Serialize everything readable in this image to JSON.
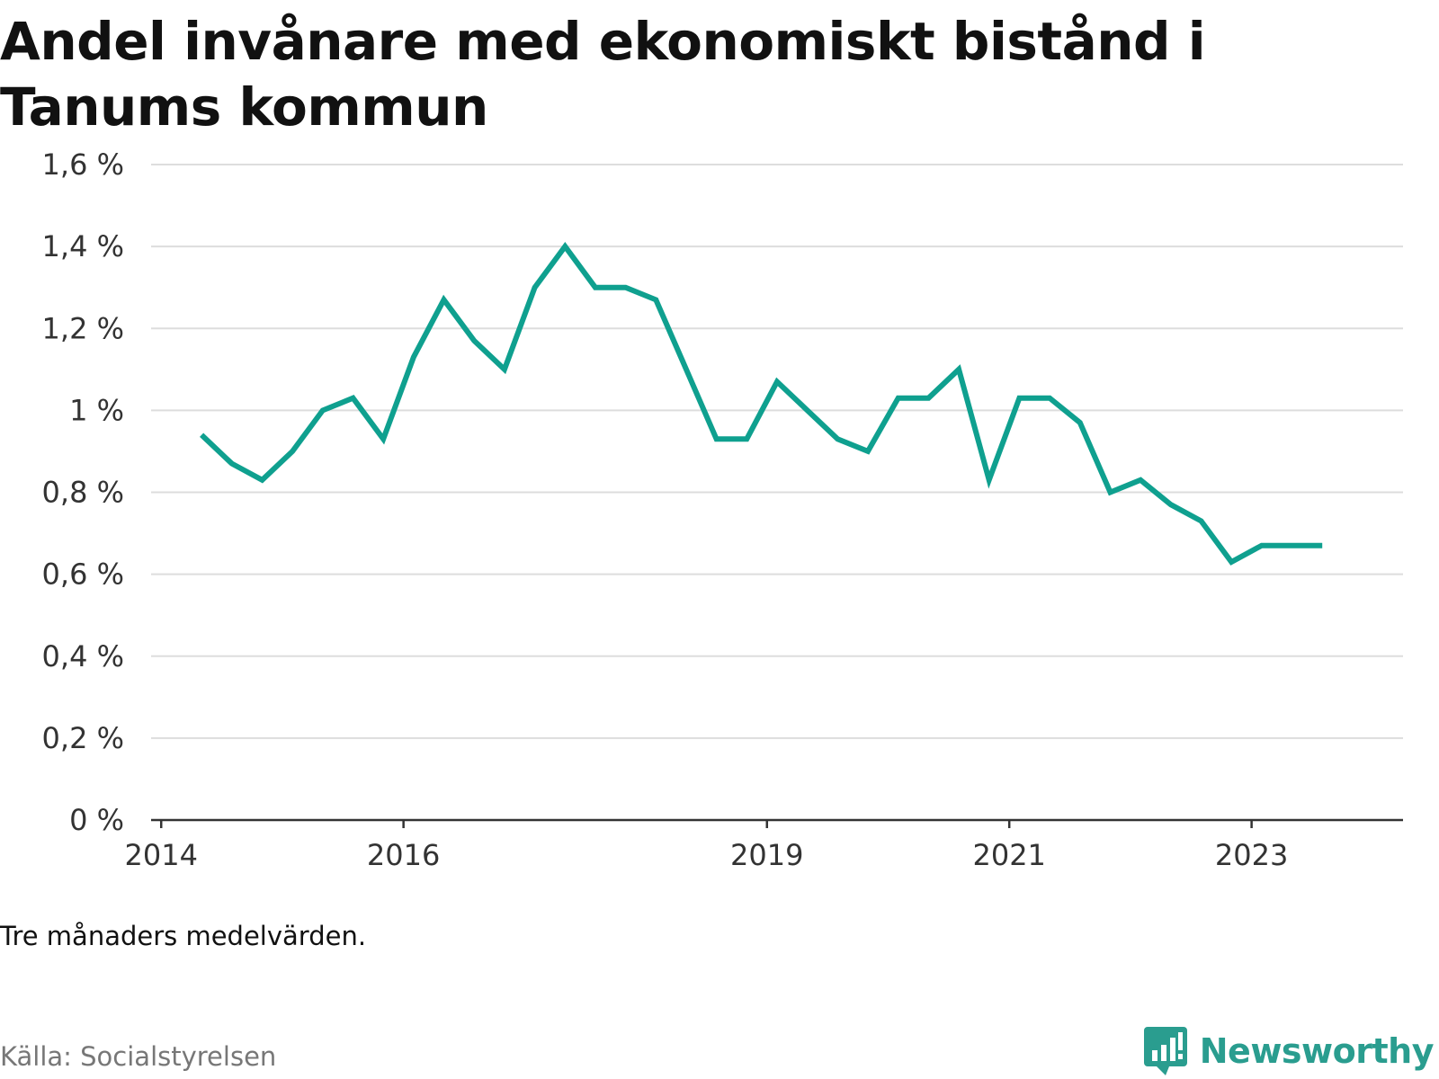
{
  "title": "Andel invånare med ekonomiskt bistånd i Tanums kommun",
  "note": "Tre månaders medelvärden.",
  "source": "Källa: Socialstyrelsen",
  "brand": {
    "name": "Newsworthy",
    "icon": "bar-chart-speech-bubble-icon",
    "color": "#2a9d8f"
  },
  "chart_data": {
    "type": "line",
    "title": "Andel invånare med ekonomiskt bistånd i Tanums kommun",
    "xlabel": "",
    "ylabel": "",
    "x_ticks": [
      "2014",
      "2016",
      "2019",
      "2021",
      "2023"
    ],
    "y_ticks": [
      "0 %",
      "0,2 %",
      "0,4 %",
      "0,6 %",
      "0,8 %",
      "1 %",
      "1,2 %",
      "1,4 %",
      "1,6 %"
    ],
    "ylim": [
      0,
      1.6
    ],
    "xlim": [
      "2013-12",
      "2024-04"
    ],
    "grid": true,
    "legend": "none",
    "series": [
      {
        "color": "#0fa08f",
        "x": [
          "2014-05",
          "2014-08",
          "2014-11",
          "2015-02",
          "2015-05",
          "2015-08",
          "2015-11",
          "2016-02",
          "2016-05",
          "2016-08",
          "2016-11",
          "2017-02",
          "2017-05",
          "2017-08",
          "2017-11",
          "2018-02",
          "2018-05",
          "2018-08",
          "2018-11",
          "2019-02",
          "2019-05",
          "2019-08",
          "2019-11",
          "2020-02",
          "2020-05",
          "2020-08",
          "2020-11",
          "2021-02",
          "2021-05",
          "2021-08",
          "2021-11",
          "2022-02",
          "2022-05",
          "2022-08",
          "2022-11",
          "2023-02",
          "2023-05",
          "2023-08"
        ],
        "values": [
          0.94,
          0.87,
          0.83,
          0.9,
          1.0,
          1.03,
          0.93,
          1.13,
          1.27,
          1.17,
          1.1,
          1.3,
          1.4,
          1.3,
          1.3,
          1.27,
          1.1,
          0.93,
          0.93,
          1.07,
          1.0,
          0.93,
          0.9,
          1.03,
          1.03,
          1.1,
          0.83,
          1.03,
          1.03,
          0.97,
          0.8,
          0.83,
          0.77,
          0.73,
          0.63,
          0.67,
          0.67,
          0.67
        ]
      }
    ]
  }
}
